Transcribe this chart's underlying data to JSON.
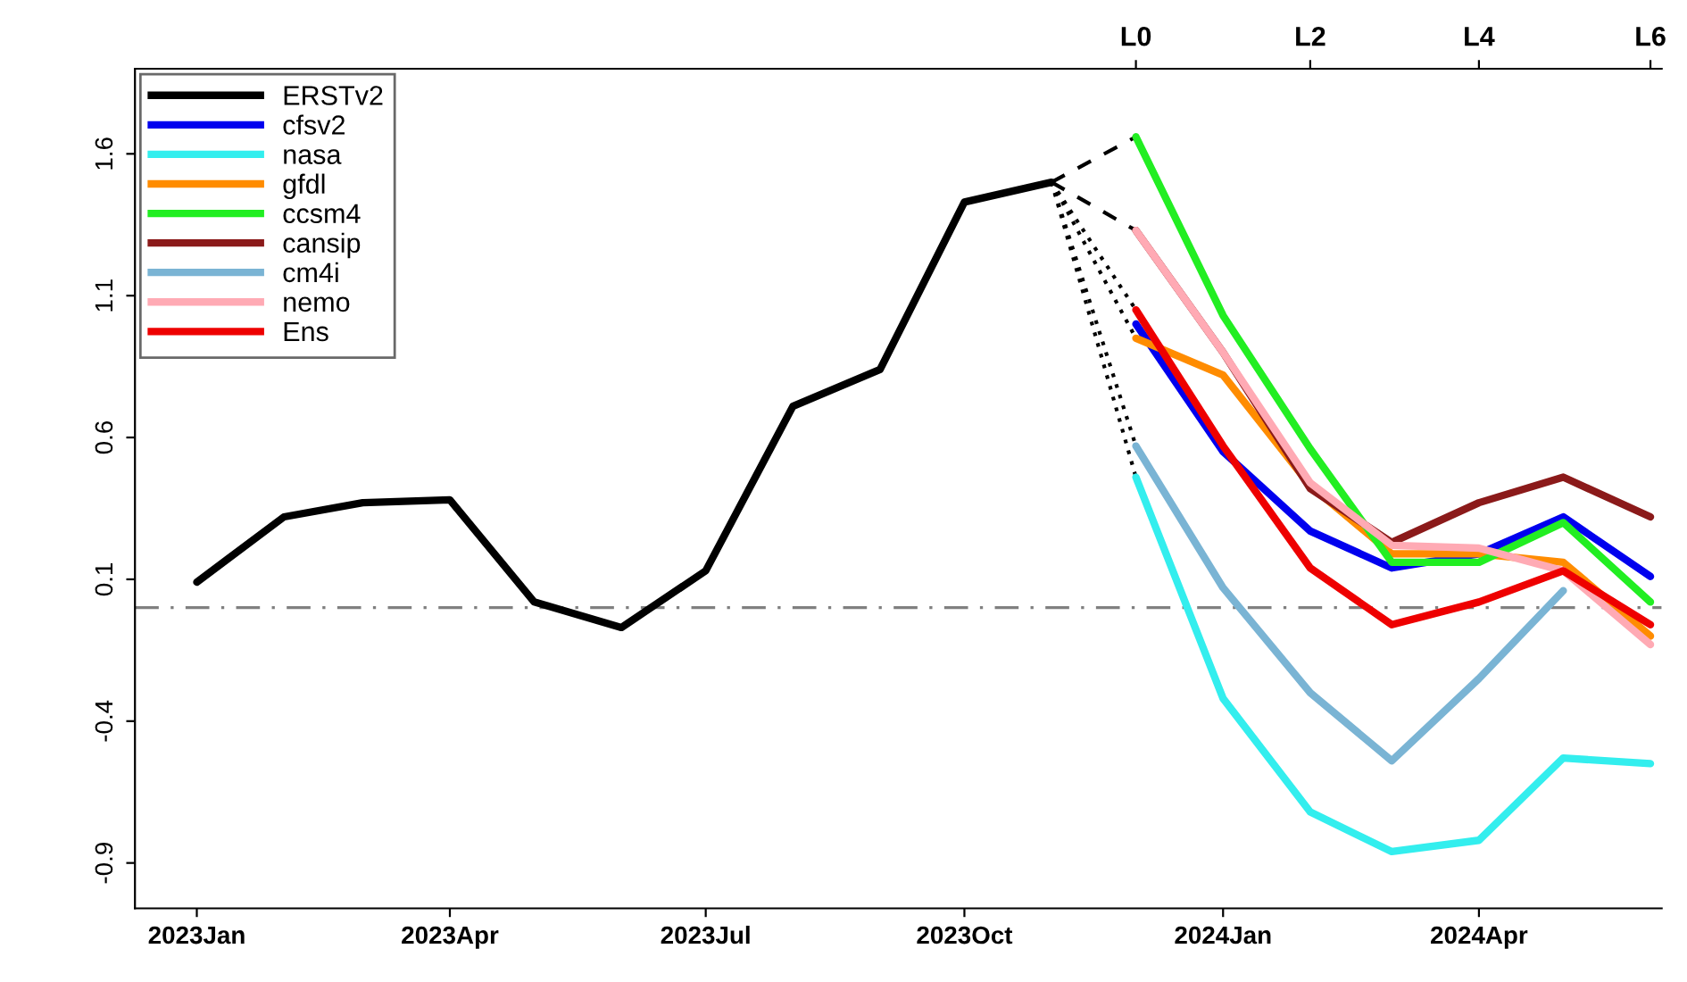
{
  "chart_data": {
    "type": "line",
    "xlim": [
      "2022-12-10",
      "2024-06-05"
    ],
    "ylim": [
      -1.06,
      1.9
    ],
    "xticks": [
      {
        "value": "2023-01",
        "label": "2023Jan"
      },
      {
        "value": "2023-04",
        "label": "2023Apr"
      },
      {
        "value": "2023-07",
        "label": "2023Jul"
      },
      {
        "value": "2023-10",
        "label": "2023Oct"
      },
      {
        "value": "2024-01",
        "label": "2024Jan"
      },
      {
        "value": "2024-04",
        "label": "2024Apr"
      }
    ],
    "yticks": [
      -0.9,
      -0.4,
      0.1,
      0.6,
      1.1,
      1.6
    ],
    "annotations": [
      {
        "text": "L0",
        "x": "2023-12"
      },
      {
        "text": "L2",
        "x": "2024-02"
      },
      {
        "text": "L4",
        "x": "2024-04"
      },
      {
        "text": "L6",
        "x": "2024-06"
      }
    ],
    "grid": false,
    "legend": "top left",
    "marker": "none",
    "ref_lines": [
      {
        "axis": "y",
        "value": 0,
        "color": "#808080",
        "line_style": "dashdot"
      }
    ],
    "series": [
      {
        "color": "#000000",
        "line_style": "dashed",
        "x": [
          "2023-11",
          "2023-12"
        ],
        "values": [
          1.5,
          1.66
        ]
      },
      {
        "color": "#000000",
        "line_style": "dashed",
        "x": [
          "2023-11",
          "2023-12"
        ],
        "values": [
          1.5,
          1.33
        ]
      },
      {
        "color": "#000000",
        "line_style": "dotted",
        "x": [
          "2023-11",
          "2023-12"
        ],
        "values": [
          1.5,
          1.05
        ]
      },
      {
        "color": "#000000",
        "line_style": "dotted",
        "x": [
          "2023-11",
          "2023-12"
        ],
        "values": [
          1.5,
          0.95
        ]
      },
      {
        "color": "#000000",
        "line_style": "dotted",
        "x": [
          "2023-11",
          "2023-12"
        ],
        "values": [
          1.5,
          0.57
        ]
      },
      {
        "color": "#000000",
        "line_style": "dotted",
        "x": [
          "2023-11",
          "2023-12"
        ],
        "values": [
          1.5,
          0.46
        ]
      },
      {
        "name": "ERSTv2",
        "color": "#000000",
        "x": [
          "2023-01",
          "2023-02",
          "2023-03",
          "2023-04",
          "2023-05",
          "2023-06",
          "2023-07",
          "2023-08",
          "2023-09",
          "2023-10",
          "2023-11"
        ],
        "values": [
          0.09,
          0.32,
          0.37,
          0.38,
          0.02,
          -0.07,
          0.13,
          0.71,
          0.84,
          1.43,
          1.5
        ]
      },
      {
        "name": "cfsv2",
        "color": "#0000ee",
        "x": [
          "2023-12",
          "2024-01",
          "2024-02",
          "2024-03",
          "2024-04",
          "2024-05",
          "2024-06"
        ],
        "values": [
          1.0,
          0.55,
          0.27,
          0.14,
          0.19,
          0.32,
          0.11
        ]
      },
      {
        "name": "nasa",
        "color": "#33eeee",
        "x": [
          "2023-12",
          "2024-01",
          "2024-02",
          "2024-03",
          "2024-04",
          "2024-05",
          "2024-06"
        ],
        "values": [
          0.46,
          -0.32,
          -0.72,
          -0.86,
          -0.82,
          -0.53,
          -0.55
        ]
      },
      {
        "name": "gfdl",
        "color": "#ff8c00",
        "x": [
          "2023-12",
          "2024-01",
          "2024-02",
          "2024-03",
          "2024-04",
          "2024-05",
          "2024-06"
        ],
        "values": [
          0.95,
          0.82,
          0.43,
          0.19,
          0.19,
          0.16,
          -0.1
        ]
      },
      {
        "name": "ccsm4",
        "color": "#22ee22",
        "x": [
          "2023-12",
          "2024-01",
          "2024-02",
          "2024-03",
          "2024-04",
          "2024-05",
          "2024-06"
        ],
        "values": [
          1.66,
          1.03,
          0.56,
          0.16,
          0.16,
          0.3,
          0.02
        ]
      },
      {
        "name": "cansip",
        "color": "#8b1a1a",
        "x": [
          "2023-12",
          "2024-01",
          "2024-02",
          "2024-03",
          "2024-04",
          "2024-05",
          "2024-06"
        ],
        "values": [
          1.33,
          0.9,
          0.42,
          0.23,
          0.37,
          0.46,
          0.32
        ]
      },
      {
        "name": "cm4i",
        "color": "#7ab4d4",
        "x": [
          "2023-12",
          "2024-01",
          "2024-02",
          "2024-03",
          "2024-04",
          "2024-05"
        ],
        "values": [
          0.57,
          0.07,
          -0.3,
          -0.54,
          -0.25,
          0.06
        ]
      },
      {
        "name": "nemo",
        "color": "#ffaab4",
        "x": [
          "2023-12",
          "2024-01",
          "2024-02",
          "2024-03",
          "2024-04",
          "2024-05",
          "2024-06"
        ],
        "values": [
          1.33,
          0.9,
          0.44,
          0.22,
          0.21,
          0.13,
          -0.13
        ]
      },
      {
        "name": "Ens",
        "color": "#ee0000",
        "x": [
          "2023-12",
          "2024-01",
          "2024-02",
          "2024-03",
          "2024-04",
          "2024-05",
          "2024-06"
        ],
        "values": [
          1.05,
          0.57,
          0.14,
          -0.06,
          0.02,
          0.13,
          -0.06
        ]
      }
    ]
  }
}
